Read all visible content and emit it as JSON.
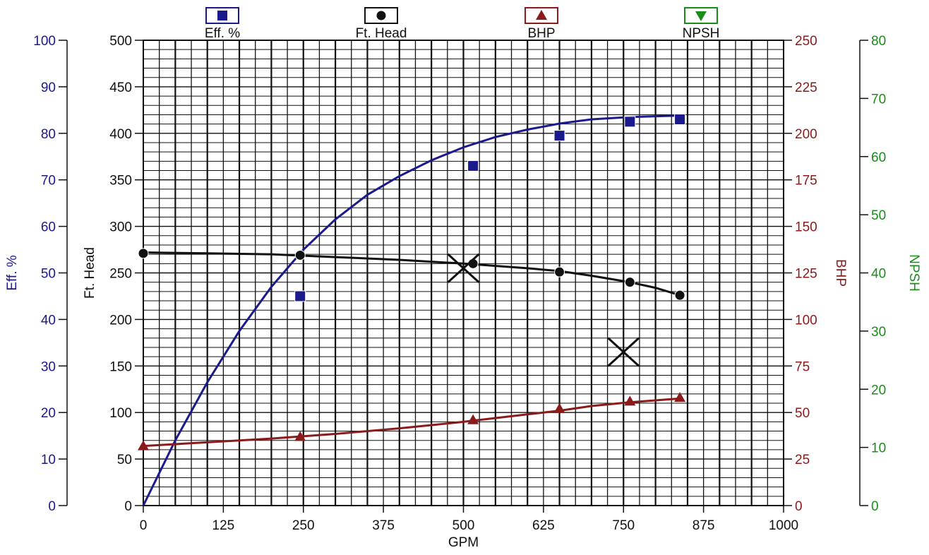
{
  "chart_data": {
    "type": "line",
    "xlabel": "GPM",
    "x_ticks": [
      "0",
      "125",
      "250",
      "375",
      "500",
      "625",
      "750",
      "875",
      "1000"
    ],
    "xlim": [
      0,
      1000
    ],
    "grid": true,
    "legend_position": "top",
    "axes": [
      {
        "id": "eff",
        "label": "Eff. %",
        "side": "left-outer",
        "lim": [
          0,
          100
        ],
        "ticks": [
          "0",
          "10",
          "20",
          "30",
          "40",
          "50",
          "60",
          "70",
          "80",
          "90",
          "100"
        ],
        "color": "#1a1a8c"
      },
      {
        "id": "head",
        "label": "Ft. Head",
        "side": "left-inner",
        "lim": [
          0,
          500
        ],
        "ticks": [
          "0",
          "50",
          "100",
          "150",
          "200",
          "250",
          "300",
          "350",
          "400",
          "450",
          "500"
        ],
        "color": "#111111"
      },
      {
        "id": "bhp",
        "label": "BHP",
        "side": "right-inner",
        "lim": [
          0,
          250
        ],
        "ticks": [
          "0",
          "25",
          "50",
          "75",
          "100",
          "125",
          "150",
          "175",
          "200",
          "225",
          "250"
        ],
        "color": "#8b1a1a"
      },
      {
        "id": "npsh",
        "label": "NPSH",
        "side": "right-outer",
        "lim": [
          0,
          80
        ],
        "ticks": [
          "0",
          "10",
          "20",
          "30",
          "40",
          "50",
          "60",
          "70",
          "80"
        ],
        "color": "#1a8c1a"
      }
    ],
    "series": [
      {
        "name": "Eff. %",
        "axis": "eff",
        "marker": "square",
        "color": "#1a1a8c",
        "curve": [
          [
            0,
            0
          ],
          [
            50,
            14
          ],
          [
            100,
            26.5
          ],
          [
            150,
            37.5
          ],
          [
            200,
            47
          ],
          [
            250,
            55
          ],
          [
            300,
            61.5
          ],
          [
            350,
            66.8
          ],
          [
            400,
            70.8
          ],
          [
            450,
            74.2
          ],
          [
            500,
            77
          ],
          [
            550,
            79.2
          ],
          [
            600,
            80.8
          ],
          [
            650,
            82.1
          ],
          [
            700,
            83
          ],
          [
            760,
            83.5
          ],
          [
            835,
            83.8
          ]
        ],
        "points": [
          [
            245,
            45
          ],
          [
            515,
            73
          ],
          [
            650,
            79.5
          ],
          [
            760,
            82.5
          ],
          [
            838,
            83
          ]
        ]
      },
      {
        "name": "Ft. Head",
        "axis": "head",
        "marker": "circle",
        "color": "#111111",
        "curve": [
          [
            0,
            272
          ],
          [
            100,
            271
          ],
          [
            200,
            270
          ],
          [
            300,
            267
          ],
          [
            400,
            264
          ],
          [
            500,
            260
          ],
          [
            600,
            255
          ],
          [
            650,
            252
          ],
          [
            700,
            247
          ],
          [
            760,
            240
          ],
          [
            800,
            234
          ],
          [
            838,
            226
          ]
        ],
        "points": [
          [
            0,
            271
          ],
          [
            245,
            269
          ],
          [
            515,
            260
          ],
          [
            650,
            251
          ],
          [
            760,
            240
          ],
          [
            838,
            226
          ]
        ]
      },
      {
        "name": "BHP",
        "axis": "bhp",
        "marker": "triangle-up",
        "color": "#8b1a1a",
        "curve": [
          [
            0,
            32
          ],
          [
            100,
            34
          ],
          [
            200,
            36
          ],
          [
            300,
            38.5
          ],
          [
            400,
            41.5
          ],
          [
            500,
            45
          ],
          [
            600,
            49
          ],
          [
            650,
            51
          ],
          [
            700,
            53.5
          ],
          [
            760,
            55.5
          ],
          [
            838,
            57.5
          ]
        ],
        "points": [
          [
            0,
            32
          ],
          [
            245,
            37
          ],
          [
            515,
            46
          ],
          [
            650,
            52
          ],
          [
            760,
            56
          ],
          [
            838,
            58
          ]
        ]
      },
      {
        "name": "NPSH",
        "axis": "npsh",
        "marker": "triangle-down",
        "color": "#1a8c1a",
        "curve": [],
        "points": []
      }
    ],
    "annotations": [
      {
        "type": "x-mark",
        "x": 500,
        "axis": "head",
        "y": 255
      },
      {
        "type": "x-mark",
        "x": 750,
        "axis": "head",
        "y": 165
      }
    ]
  }
}
